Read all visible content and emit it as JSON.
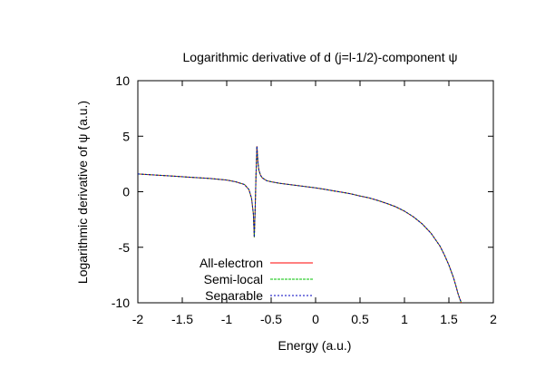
{
  "chart_data": {
    "type": "line",
    "title": "Logarithmic derivative of d (j=l-1/2)-component ψ",
    "xlabel": "Energy (a.u.)",
    "ylabel": "Logarithmic derivative of ψ (a.u.)",
    "xlim": [
      -2,
      2
    ],
    "ylim": [
      -10,
      10
    ],
    "xticks": [
      "-2",
      "-1.5",
      "-1",
      "-0.5",
      "0",
      "0.5",
      "1",
      "1.5",
      "2"
    ],
    "yticks": [
      "-10",
      "-5",
      "0",
      "5",
      "10"
    ],
    "grid": false,
    "legend_position": "bottom-left",
    "series": [
      {
        "name": "All-electron",
        "color": "#ff0000",
        "dash": "solid",
        "x": [
          -2.0,
          -1.8,
          -1.6,
          -1.4,
          -1.2,
          -1.0,
          -0.9,
          -0.8,
          -0.75,
          -0.72,
          -0.7,
          -0.69,
          -0.68,
          -0.67,
          -0.66,
          -0.65,
          -0.64,
          -0.62,
          -0.6,
          -0.55,
          -0.5,
          -0.4,
          -0.3,
          -0.2,
          -0.1,
          0.0,
          0.1,
          0.2,
          0.3,
          0.4,
          0.5,
          0.6,
          0.7,
          0.8,
          0.9,
          1.0,
          1.1,
          1.2,
          1.3,
          1.4,
          1.45,
          1.5,
          1.55,
          1.58,
          1.6,
          1.62,
          1.64
        ],
        "y": [
          1.6,
          1.5,
          1.4,
          1.3,
          1.2,
          1.05,
          0.9,
          0.65,
          0.2,
          -0.6,
          -2.0,
          -4.1,
          -1.5,
          1.5,
          4.1,
          2.8,
          2.0,
          1.5,
          1.25,
          1.0,
          0.9,
          0.75,
          0.65,
          0.55,
          0.45,
          0.35,
          0.22,
          0.08,
          -0.05,
          -0.2,
          -0.38,
          -0.55,
          -0.78,
          -1.05,
          -1.35,
          -1.75,
          -2.25,
          -2.9,
          -3.75,
          -4.9,
          -5.7,
          -6.6,
          -7.7,
          -8.5,
          -9.1,
          -9.6,
          -10.0
        ]
      },
      {
        "name": "Semi-local",
        "color": "#00c000",
        "dash": "3,1",
        "x": [
          -2.0,
          -1.8,
          -1.6,
          -1.4,
          -1.2,
          -1.0,
          -0.9,
          -0.8,
          -0.75,
          -0.72,
          -0.7,
          -0.69,
          -0.68,
          -0.67,
          -0.66,
          -0.65,
          -0.64,
          -0.62,
          -0.6,
          -0.55,
          -0.5,
          -0.4,
          -0.3,
          -0.2,
          -0.1,
          0.0,
          0.1,
          0.2,
          0.3,
          0.4,
          0.5,
          0.6,
          0.7,
          0.8,
          0.9,
          1.0,
          1.1,
          1.2,
          1.3,
          1.4,
          1.45,
          1.5,
          1.55,
          1.58,
          1.6,
          1.62,
          1.64
        ],
        "y": [
          1.6,
          1.5,
          1.4,
          1.3,
          1.2,
          1.05,
          0.9,
          0.65,
          0.2,
          -0.6,
          -2.0,
          -4.1,
          -1.5,
          1.5,
          4.1,
          2.8,
          2.0,
          1.5,
          1.25,
          1.0,
          0.9,
          0.75,
          0.65,
          0.55,
          0.45,
          0.35,
          0.22,
          0.08,
          -0.05,
          -0.2,
          -0.38,
          -0.55,
          -0.78,
          -1.05,
          -1.35,
          -1.75,
          -2.25,
          -2.9,
          -3.75,
          -4.9,
          -5.7,
          -6.6,
          -7.7,
          -8.5,
          -9.1,
          -9.6,
          -10.0
        ]
      },
      {
        "name": "Separable",
        "color": "#0000c0",
        "dash": "2,2",
        "x": [
          -2.0,
          -1.8,
          -1.6,
          -1.4,
          -1.2,
          -1.0,
          -0.9,
          -0.8,
          -0.75,
          -0.72,
          -0.7,
          -0.69,
          -0.68,
          -0.67,
          -0.66,
          -0.65,
          -0.64,
          -0.62,
          -0.6,
          -0.55,
          -0.5,
          -0.4,
          -0.3,
          -0.2,
          -0.1,
          0.0,
          0.1,
          0.2,
          0.3,
          0.4,
          0.5,
          0.6,
          0.7,
          0.8,
          0.9,
          1.0,
          1.1,
          1.2,
          1.3,
          1.4,
          1.45,
          1.5,
          1.55,
          1.58,
          1.6,
          1.62,
          1.64
        ],
        "y": [
          1.6,
          1.5,
          1.4,
          1.3,
          1.2,
          1.05,
          0.9,
          0.65,
          0.2,
          -0.6,
          -2.0,
          -4.1,
          -1.5,
          1.5,
          4.1,
          2.8,
          2.0,
          1.5,
          1.25,
          1.0,
          0.9,
          0.75,
          0.65,
          0.55,
          0.45,
          0.35,
          0.22,
          0.08,
          -0.05,
          -0.2,
          -0.38,
          -0.55,
          -0.78,
          -1.05,
          -1.35,
          -1.75,
          -2.25,
          -2.9,
          -3.75,
          -4.9,
          -5.7,
          -6.6,
          -7.7,
          -8.5,
          -9.1,
          -9.6,
          -10.0
        ]
      }
    ]
  }
}
